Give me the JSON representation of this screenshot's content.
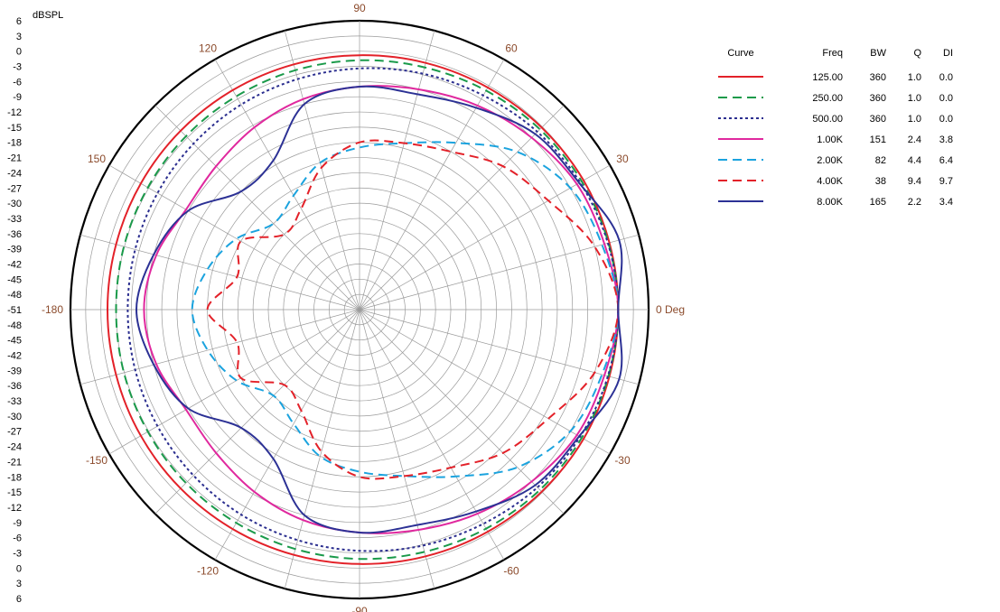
{
  "chart_data": {
    "type": "polar",
    "title": "",
    "radial_axis": {
      "unit_label": "dBSPL",
      "min": -51,
      "max": 6,
      "step": 3,
      "tick_labels": [
        "6",
        "3",
        "0",
        "-3",
        "-6",
        "-9",
        "-12",
        "-15",
        "-18",
        "-21",
        "-24",
        "-27",
        "-30",
        "-33",
        "-36",
        "-39",
        "-42",
        "-45",
        "-48",
        "-51"
      ]
    },
    "angular_axis": {
      "labels": [
        {
          "angle": 0,
          "text": "0 Deg"
        },
        {
          "angle": 30,
          "text": "30"
        },
        {
          "angle": 60,
          "text": "60"
        },
        {
          "angle": 90,
          "text": "90"
        },
        {
          "angle": 120,
          "text": "120"
        },
        {
          "angle": 150,
          "text": "150"
        },
        {
          "angle": 180,
          "text": "-180"
        },
        {
          "angle": -150,
          "text": "-150"
        },
        {
          "angle": -120,
          "text": "-120"
        },
        {
          "angle": -90,
          "text": "-90"
        },
        {
          "angle": -60,
          "text": "-60"
        },
        {
          "angle": -30,
          "text": "-30"
        }
      ]
    },
    "legend": {
      "headers": [
        "Curve",
        "Freq",
        "BW",
        "Q",
        "DI"
      ],
      "placement": "top-right"
    },
    "angles_deg": [
      0,
      15,
      30,
      45,
      60,
      75,
      90,
      105,
      120,
      135,
      150,
      165,
      180,
      195,
      210,
      225,
      240,
      255,
      270,
      285,
      300,
      315,
      330,
      345
    ],
    "series": [
      {
        "freq": "125.00",
        "bw": "360",
        "q": "1.0",
        "di": "0.0",
        "color": "#e32129",
        "dash": "solid",
        "values": [
          0,
          0,
          0,
          -0.2,
          -0.4,
          -0.6,
          -0.8,
          -0.9,
          -1.0,
          -1.1,
          -1.2,
          -1.3,
          -1.3,
          -1.3,
          -1.2,
          -1.1,
          -1.0,
          -0.9,
          -0.8,
          -0.6,
          -0.4,
          -0.2,
          0,
          0
        ]
      },
      {
        "freq": "250.00",
        "bw": "360",
        "q": "1.0",
        "di": "0.0",
        "color": "#1a9a4a",
        "dash": "dash",
        "values": [
          0,
          -0.2,
          -0.4,
          -0.7,
          -1.1,
          -1.5,
          -1.8,
          -2.1,
          -2.4,
          -2.6,
          -2.8,
          -2.9,
          -3.0,
          -2.9,
          -2.8,
          -2.6,
          -2.4,
          -2.1,
          -1.8,
          -1.5,
          -1.1,
          -0.7,
          -0.4,
          -0.2
        ]
      },
      {
        "freq": "500.00",
        "bw": "360",
        "q": "1.0",
        "di": "0.0",
        "color": "#2b2e8f",
        "dash": "dot",
        "values": [
          0,
          -0.3,
          -0.8,
          -1.4,
          -2.2,
          -2.8,
          -3.4,
          -3.9,
          -4.3,
          -4.7,
          -5.0,
          -5.2,
          -5.3,
          -5.2,
          -5.0,
          -4.7,
          -4.3,
          -3.9,
          -3.4,
          -2.8,
          -2.2,
          -1.4,
          -0.8,
          -0.3
        ]
      },
      {
        "freq": "1.00K",
        "bw": "151",
        "q": "2.4",
        "di": "3.8",
        "color": "#e0289e",
        "dash": "solid",
        "values": [
          0,
          -1,
          -1.5,
          -3,
          -4.5,
          -6,
          -7,
          -8,
          -9.5,
          -11,
          -11.5,
          -9.5,
          -8.5,
          -9.5,
          -11.5,
          -11,
          -9.5,
          -8,
          -7,
          -6,
          -4.5,
          -3,
          -1.5,
          -1
        ]
      },
      {
        "freq": "2.00K",
        "bw": "82",
        "q": "4.4",
        "di": "6.4",
        "color": "#1ba3de",
        "dash": "dash",
        "values": [
          0,
          -1.5,
          -3,
          -7,
          -13,
          -17,
          -19,
          -21,
          -25,
          -27,
          -23,
          -20,
          -18,
          -20,
          -23,
          -27,
          -25,
          -21,
          -19,
          -17,
          -13,
          -7,
          -3,
          -1.5
        ]
      },
      {
        "freq": "4.00K",
        "bw": "38",
        "q": "9.4",
        "di": "9.7",
        "color": "#e32129",
        "dash": "dash",
        "values": [
          0,
          -3,
          -8,
          -11,
          -15,
          -17,
          -18,
          -22,
          -28,
          -30,
          -24,
          -26,
          -21,
          -26,
          -24,
          -30,
          -28,
          -22,
          -18,
          -17,
          -15,
          -11,
          -8,
          -3
        ]
      },
      {
        "freq": "8.00K",
        "bw": "165",
        "q": "2.2",
        "di": "3.4",
        "color": "#2c3195",
        "dash": "solid",
        "values": [
          0,
          2,
          -1,
          -2,
          -5,
          -7,
          -7,
          -9,
          -17,
          -18,
          -12,
          -9,
          -7,
          -9,
          -12,
          -18,
          -17,
          -9,
          -7,
          -7,
          -5,
          -2,
          -1,
          2
        ]
      }
    ]
  }
}
